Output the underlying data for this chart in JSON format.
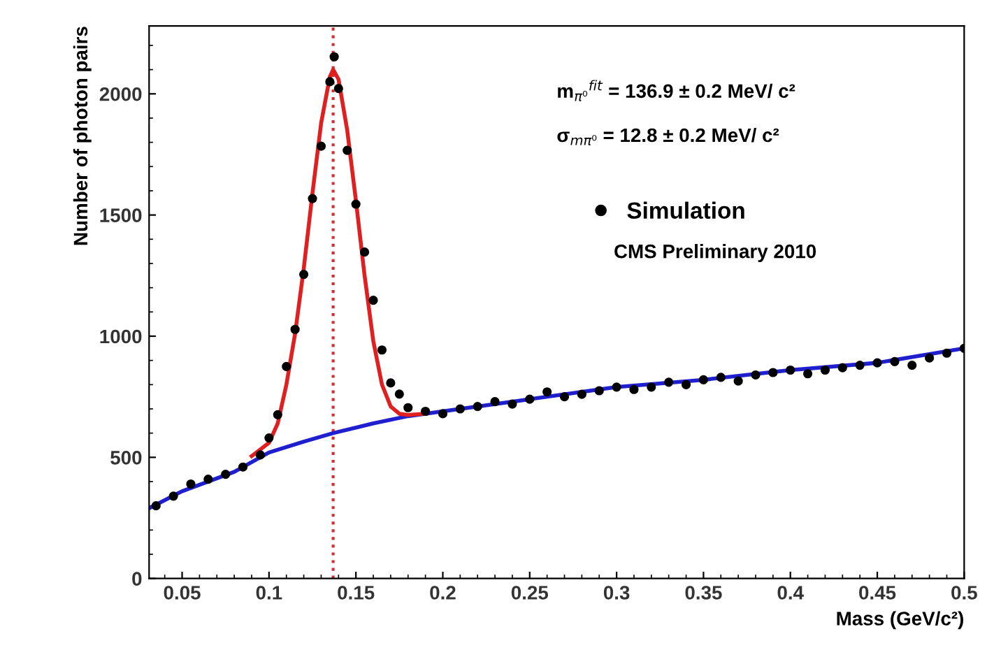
{
  "chart_data": {
    "type": "line",
    "xlabel": "Mass (GeV/c²)",
    "ylabel": "Number of photon pairs",
    "xlim": [
      0.031,
      0.5
    ],
    "ylim": [
      0,
      2280
    ],
    "xticks": [
      0.05,
      0.1,
      0.15,
      0.2,
      0.25,
      0.3,
      0.35,
      0.4,
      0.45,
      0.5
    ],
    "yticks": [
      0,
      500,
      1000,
      1500,
      2000
    ],
    "grid": false,
    "legend": "top",
    "ref_lines": [
      {
        "axis": "x",
        "value": 0.1369,
        "color": "#d03030",
        "line_style": "dotted"
      }
    ],
    "annotations": [
      "m$_{π⁰}$$^{fit}$ = 136.9 ± 0.2 MeV/ c²",
      "σ$_{mπ⁰}$ = 12.8 ± 0.2 MeV/ c²",
      "CMS Preliminary 2010"
    ],
    "series": [
      {
        "color": "#1f1fd0",
        "marker": "none",
        "x": [
          0.031,
          0.05,
          0.08,
          0.1,
          0.12,
          0.137,
          0.16,
          0.18,
          0.2,
          0.25,
          0.3,
          0.35,
          0.4,
          0.45,
          0.5
        ],
        "values": [
          290,
          360,
          440,
          520,
          565,
          600,
          640,
          670,
          690,
          740,
          790,
          820,
          860,
          890,
          950
        ]
      },
      {
        "color": "#e02020",
        "marker": "none",
        "x": [
          0.09,
          0.1,
          0.105,
          0.11,
          0.115,
          0.12,
          0.125,
          0.13,
          0.135,
          0.1369,
          0.14,
          0.145,
          0.15,
          0.155,
          0.16,
          0.165,
          0.17,
          0.175,
          0.18,
          0.19
        ],
        "values": [
          505,
          560,
          640,
          800,
          1010,
          1280,
          1590,
          1880,
          2070,
          2100,
          2060,
          1850,
          1560,
          1250,
          980,
          800,
          710,
          680,
          675,
          680
        ]
      },
      {
        "type": "scatter",
        "name": "Simulation",
        "color": "#000000",
        "marker": "circle",
        "x": [
          0.035,
          0.045,
          0.055,
          0.065,
          0.075,
          0.085,
          0.095,
          0.1,
          0.105,
          0.11,
          0.115,
          0.12,
          0.125,
          0.13,
          0.135,
          0.1375,
          0.14,
          0.145,
          0.15,
          0.155,
          0.16,
          0.165,
          0.17,
          0.175,
          0.18,
          0.19,
          0.2,
          0.21,
          0.22,
          0.23,
          0.24,
          0.25,
          0.26,
          0.27,
          0.28,
          0.29,
          0.3,
          0.31,
          0.32,
          0.33,
          0.34,
          0.35,
          0.36,
          0.37,
          0.38,
          0.39,
          0.4,
          0.41,
          0.42,
          0.43,
          0.44,
          0.45,
          0.46,
          0.47,
          0.48,
          0.49,
          0.5
        ],
        "values": [
          300,
          340,
          390,
          410,
          430,
          460,
          510,
          580,
          676,
          875,
          1028,
          1255,
          1568,
          1784,
          2050,
          2153,
          2022,
          1767,
          1545,
          1347,
          1148,
          943,
          807,
          761,
          705,
          690,
          680,
          700,
          710,
          730,
          720,
          740,
          770,
          750,
          760,
          775,
          790,
          780,
          790,
          810,
          800,
          820,
          830,
          815,
          840,
          850,
          860,
          845,
          860,
          870,
          880,
          890,
          895,
          880,
          910,
          930,
          950
        ]
      }
    ]
  }
}
